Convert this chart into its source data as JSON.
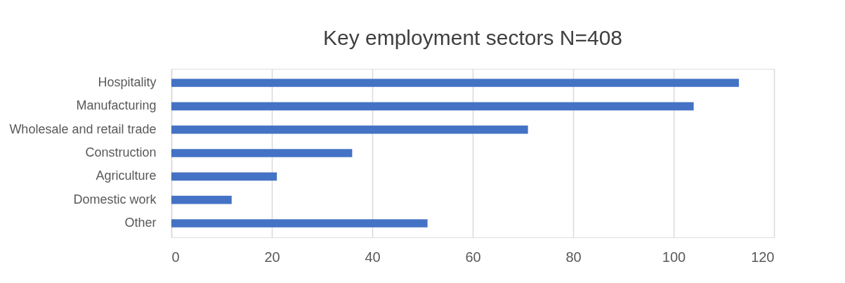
{
  "chart_data": {
    "type": "bar",
    "orientation": "horizontal",
    "title": "Key employment sectors N=408",
    "categories": [
      "Hospitality",
      "Manufacturing",
      "Wholesale and retail trade",
      "Construction",
      "Agriculture",
      "Domestic work",
      "Other"
    ],
    "values": [
      113,
      104,
      71,
      36,
      21,
      12,
      51
    ],
    "color": "#4472c4",
    "xlim": [
      0,
      120
    ],
    "xticks": [
      0,
      20,
      40,
      60,
      80,
      100,
      120
    ],
    "grid": "x"
  }
}
